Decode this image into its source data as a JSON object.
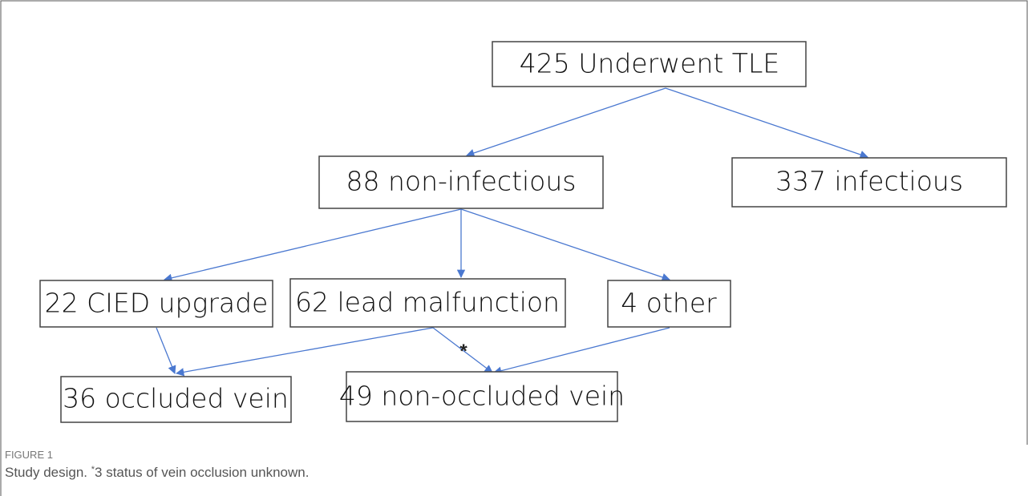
{
  "nodes": [
    {
      "label": "425 Underwent TLE"
    },
    {
      "label": "88 non-infectious"
    },
    {
      "label": "337 infectious"
    },
    {
      "label": "22 CIED upgrade"
    },
    {
      "label": "62 lead malfunction"
    },
    {
      "label": "4 other"
    },
    {
      "label": "36 occluded vein"
    },
    {
      "label": "49 non-occluded vein"
    }
  ],
  "annotation": "*",
  "caption": {
    "label": "FIGURE 1",
    "text_start": "Study design. ",
    "superscript": "*",
    "text_end": "3 status of vein occlusion unknown."
  }
}
